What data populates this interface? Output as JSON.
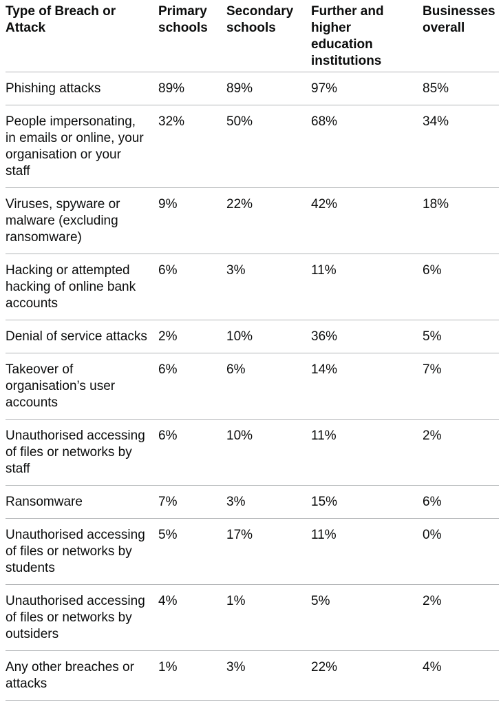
{
  "chart_data": {
    "type": "table",
    "title": "",
    "columns": [
      "Type of Breach or\nAttack",
      "Primary\nschools",
      "Secondary\nschools",
      "Further and\nhigher\neducation\ninstitutions",
      "Businesses\noverall"
    ],
    "rows": [
      {
        "label": "Phishing attacks",
        "values": [
          "89%",
          "89%",
          "97%",
          "85%"
        ]
      },
      {
        "label": "People impersonating,\nin emails or online, your\norganisation or your\nstaff",
        "values": [
          "32%",
          "50%",
          "68%",
          "34%"
        ]
      },
      {
        "label": "Viruses, spyware or\nmalware (excluding\nransomware)",
        "values": [
          "9%",
          "22%",
          "42%",
          "18%"
        ]
      },
      {
        "label": "Hacking or attempted\nhacking of online bank\naccounts",
        "values": [
          "6%",
          "3%",
          "11%",
          "6%"
        ]
      },
      {
        "label": "Denial of service attacks",
        "values": [
          "2%",
          "10%",
          "36%",
          "5%"
        ]
      },
      {
        "label": "Takeover of\norganisation’s user\naccounts",
        "values": [
          "6%",
          "6%",
          "14%",
          "7%"
        ]
      },
      {
        "label": "Unauthorised accessing\nof files or networks by\nstaff",
        "values": [
          "6%",
          "10%",
          "11%",
          "2%"
        ]
      },
      {
        "label": "Ransomware",
        "values": [
          "7%",
          "3%",
          "15%",
          "6%"
        ]
      },
      {
        "label": "Unauthorised accessing\nof files or networks by\nstudents",
        "values": [
          "5%",
          "17%",
          "11%",
          "0%"
        ]
      },
      {
        "label": "Unauthorised accessing\nof files or networks by\noutsiders",
        "values": [
          "4%",
          "1%",
          "5%",
          "2%"
        ]
      },
      {
        "label": "Any other breaches or\nattacks",
        "values": [
          "1%",
          "3%",
          "22%",
          "4%"
        ]
      }
    ]
  },
  "colors": {
    "text": "#0b0c0c",
    "border": "#b1b4b6",
    "background": "#ffffff"
  }
}
